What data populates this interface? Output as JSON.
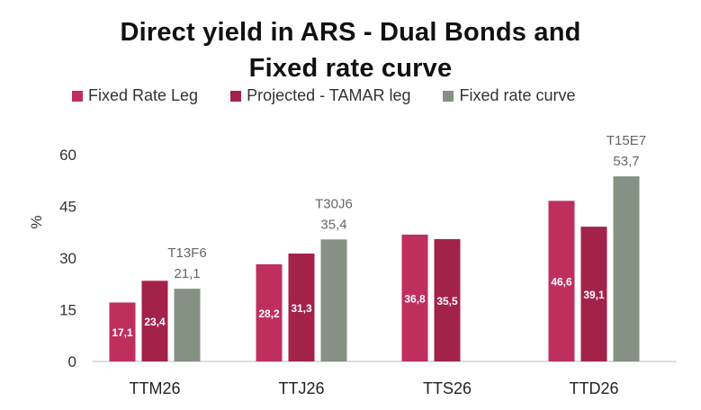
{
  "chart_data": {
    "type": "bar",
    "title_line1": "Direct yield in ARS - Dual Bonds and",
    "title_line2": "Fixed rate curve",
    "ylabel": "%",
    "ylim": [
      0,
      60
    ],
    "yticks": [
      "0",
      "15",
      "30",
      "45",
      "60"
    ],
    "categories": [
      "TTM26",
      "TTJ26",
      "TTS26",
      "TTD26"
    ],
    "colors": [
      "#bf2f5e",
      "#a3224a",
      "#859283"
    ],
    "series": [
      {
        "name": "Fixed Rate Leg",
        "values": [
          17.1,
          28.2,
          36.8,
          46.6
        ],
        "labels": [
          "17,1",
          "28,2",
          "36,8",
          "46,6"
        ]
      },
      {
        "name": "Projected - TAMAR leg",
        "values": [
          23.4,
          31.3,
          35.5,
          39.1
        ],
        "labels": [
          "23,4",
          "31,3",
          "35,5",
          "39,1"
        ]
      },
      {
        "name": "Fixed rate curve",
        "values": [
          21.1,
          35.4,
          null,
          53.7
        ],
        "labels": [
          "21,1",
          "35,4",
          "",
          "53,7"
        ],
        "tickers": [
          "T13F6",
          "T30J6",
          "",
          "T15E7"
        ]
      }
    ],
    "grid": false,
    "legend_position": "top"
  }
}
